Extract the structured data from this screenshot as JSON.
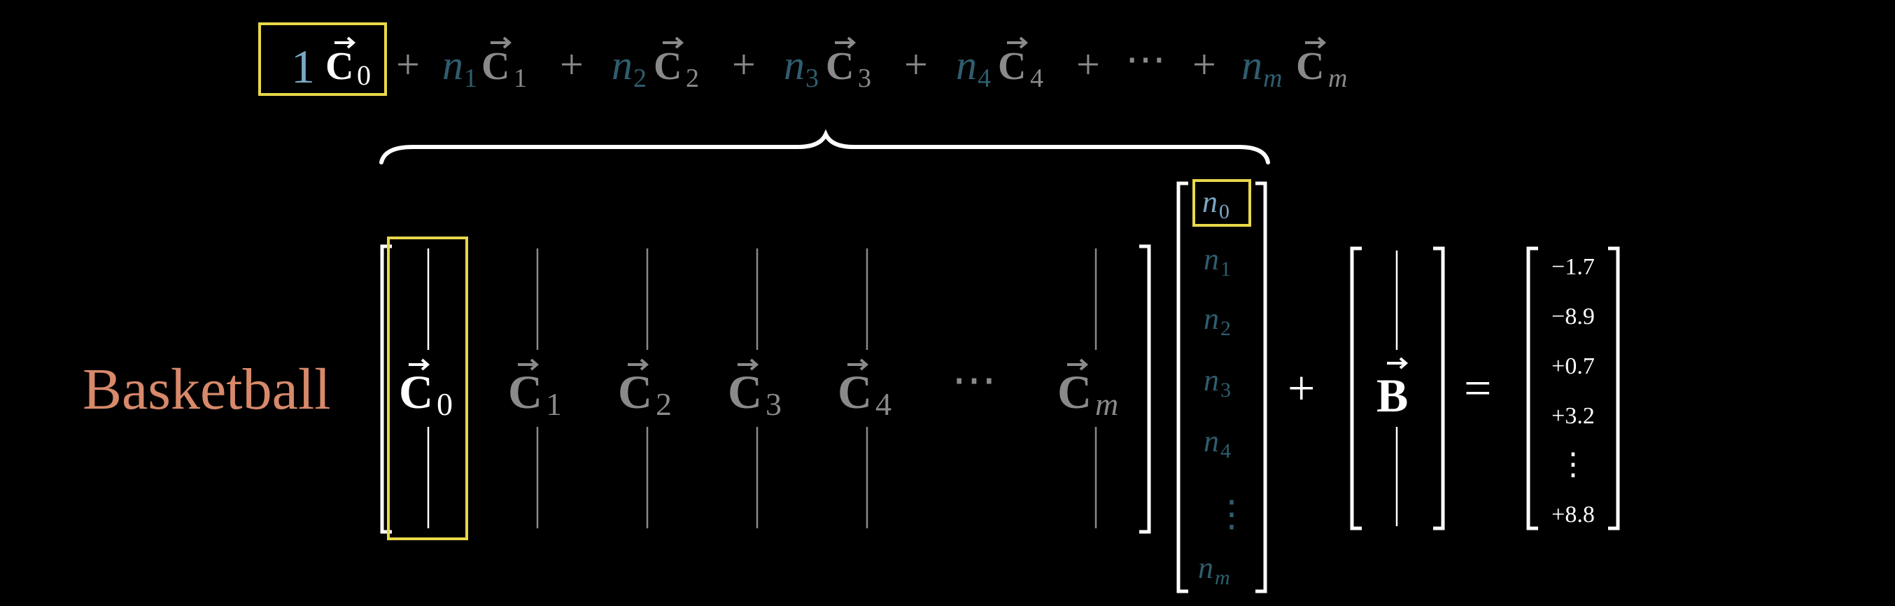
{
  "colors": {
    "background": "#000000",
    "highlight": "#e8d84a",
    "white": "#ffffff",
    "dim_vector": "#8a8a8a",
    "coef_dim": "#2f5d6e",
    "coef_bright": "#79a8c4",
    "label": "#d7896a"
  },
  "equation_top": {
    "lead_coef": "1",
    "lead_vec": "C",
    "lead_sub": "0",
    "plus": "+",
    "terms": [
      {
        "coef": "n",
        "coef_sub": "1",
        "vec": "C",
        "vec_sub": "1"
      },
      {
        "coef": "n",
        "coef_sub": "2",
        "vec": "C",
        "vec_sub": "2"
      },
      {
        "coef": "n",
        "coef_sub": "3",
        "vec": "C",
        "vec_sub": "3"
      },
      {
        "coef": "n",
        "coef_sub": "4",
        "vec": "C",
        "vec_sub": "4"
      }
    ],
    "dots": "⋯",
    "last_term": {
      "coef": "n",
      "coef_sub": "m",
      "vec": "C",
      "vec_sub": "m"
    }
  },
  "row_label": "Basketball",
  "matrix": {
    "columns": [
      {
        "vec": "C",
        "sub": "0"
      },
      {
        "vec": "C",
        "sub": "1"
      },
      {
        "vec": "C",
        "sub": "2"
      },
      {
        "vec": "C",
        "sub": "3"
      },
      {
        "vec": "C",
        "sub": "4"
      }
    ],
    "dots": "⋯",
    "last_column": {
      "vec": "C",
      "sub": "m"
    }
  },
  "coef_vector": {
    "entries": [
      {
        "sym": "n",
        "sub": "0"
      },
      {
        "sym": "n",
        "sub": "1"
      },
      {
        "sym": "n",
        "sub": "2"
      },
      {
        "sym": "n",
        "sub": "3"
      },
      {
        "sym": "n",
        "sub": "4"
      }
    ],
    "vdots": "⋮",
    "last": {
      "sym": "n",
      "sub": "m"
    }
  },
  "plus": "+",
  "bias": {
    "vec": "B"
  },
  "equals": "=",
  "result": {
    "values": [
      "−1.7",
      "−8.9",
      "+0.7",
      "+3.2"
    ],
    "vdots": "⋮",
    "last": "+8.8"
  }
}
